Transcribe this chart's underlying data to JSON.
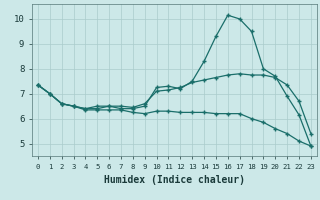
{
  "xlabel": "Humidex (Indice chaleur)",
  "background_color": "#cce8e8",
  "grid_color": "#aacccc",
  "line_color": "#1a6e6a",
  "xlim": [
    -0.5,
    23.5
  ],
  "ylim": [
    4.5,
    10.6
  ],
  "xticks": [
    0,
    1,
    2,
    3,
    4,
    5,
    6,
    7,
    8,
    9,
    10,
    11,
    12,
    13,
    14,
    15,
    16,
    17,
    18,
    19,
    20,
    21,
    22,
    23
  ],
  "yticks": [
    5,
    6,
    7,
    8,
    9,
    10
  ],
  "line1_x": [
    0,
    1,
    2,
    3,
    4,
    5,
    6,
    7,
    8,
    9,
    10,
    11,
    12,
    13,
    14,
    15,
    16,
    17,
    18,
    19,
    20,
    21,
    22,
    23
  ],
  "line1_y": [
    7.35,
    7.0,
    6.6,
    6.5,
    6.4,
    6.5,
    6.5,
    6.4,
    6.4,
    6.5,
    7.25,
    7.3,
    7.2,
    7.5,
    8.3,
    9.3,
    10.15,
    10.0,
    9.5,
    8.0,
    7.7,
    6.9,
    6.15,
    4.9
  ],
  "line2_x": [
    0,
    1,
    2,
    3,
    4,
    5,
    6,
    7,
    8,
    9,
    10,
    11,
    12,
    13,
    14,
    15,
    16,
    17,
    18,
    19,
    20,
    21,
    22,
    23
  ],
  "line2_y": [
    7.35,
    7.0,
    6.6,
    6.5,
    6.4,
    6.4,
    6.5,
    6.5,
    6.45,
    6.6,
    7.1,
    7.15,
    7.25,
    7.45,
    7.55,
    7.65,
    7.75,
    7.8,
    7.75,
    7.75,
    7.65,
    7.35,
    6.7,
    5.4
  ],
  "line3_x": [
    0,
    1,
    2,
    3,
    4,
    5,
    6,
    7,
    8,
    9,
    10,
    11,
    12,
    13,
    14,
    15,
    16,
    17,
    18,
    19,
    20,
    21,
    22,
    23
  ],
  "line3_y": [
    7.35,
    7.0,
    6.6,
    6.5,
    6.35,
    6.35,
    6.35,
    6.35,
    6.25,
    6.2,
    6.3,
    6.3,
    6.25,
    6.25,
    6.25,
    6.2,
    6.2,
    6.2,
    6.0,
    5.85,
    5.6,
    5.4,
    5.1,
    4.9
  ]
}
